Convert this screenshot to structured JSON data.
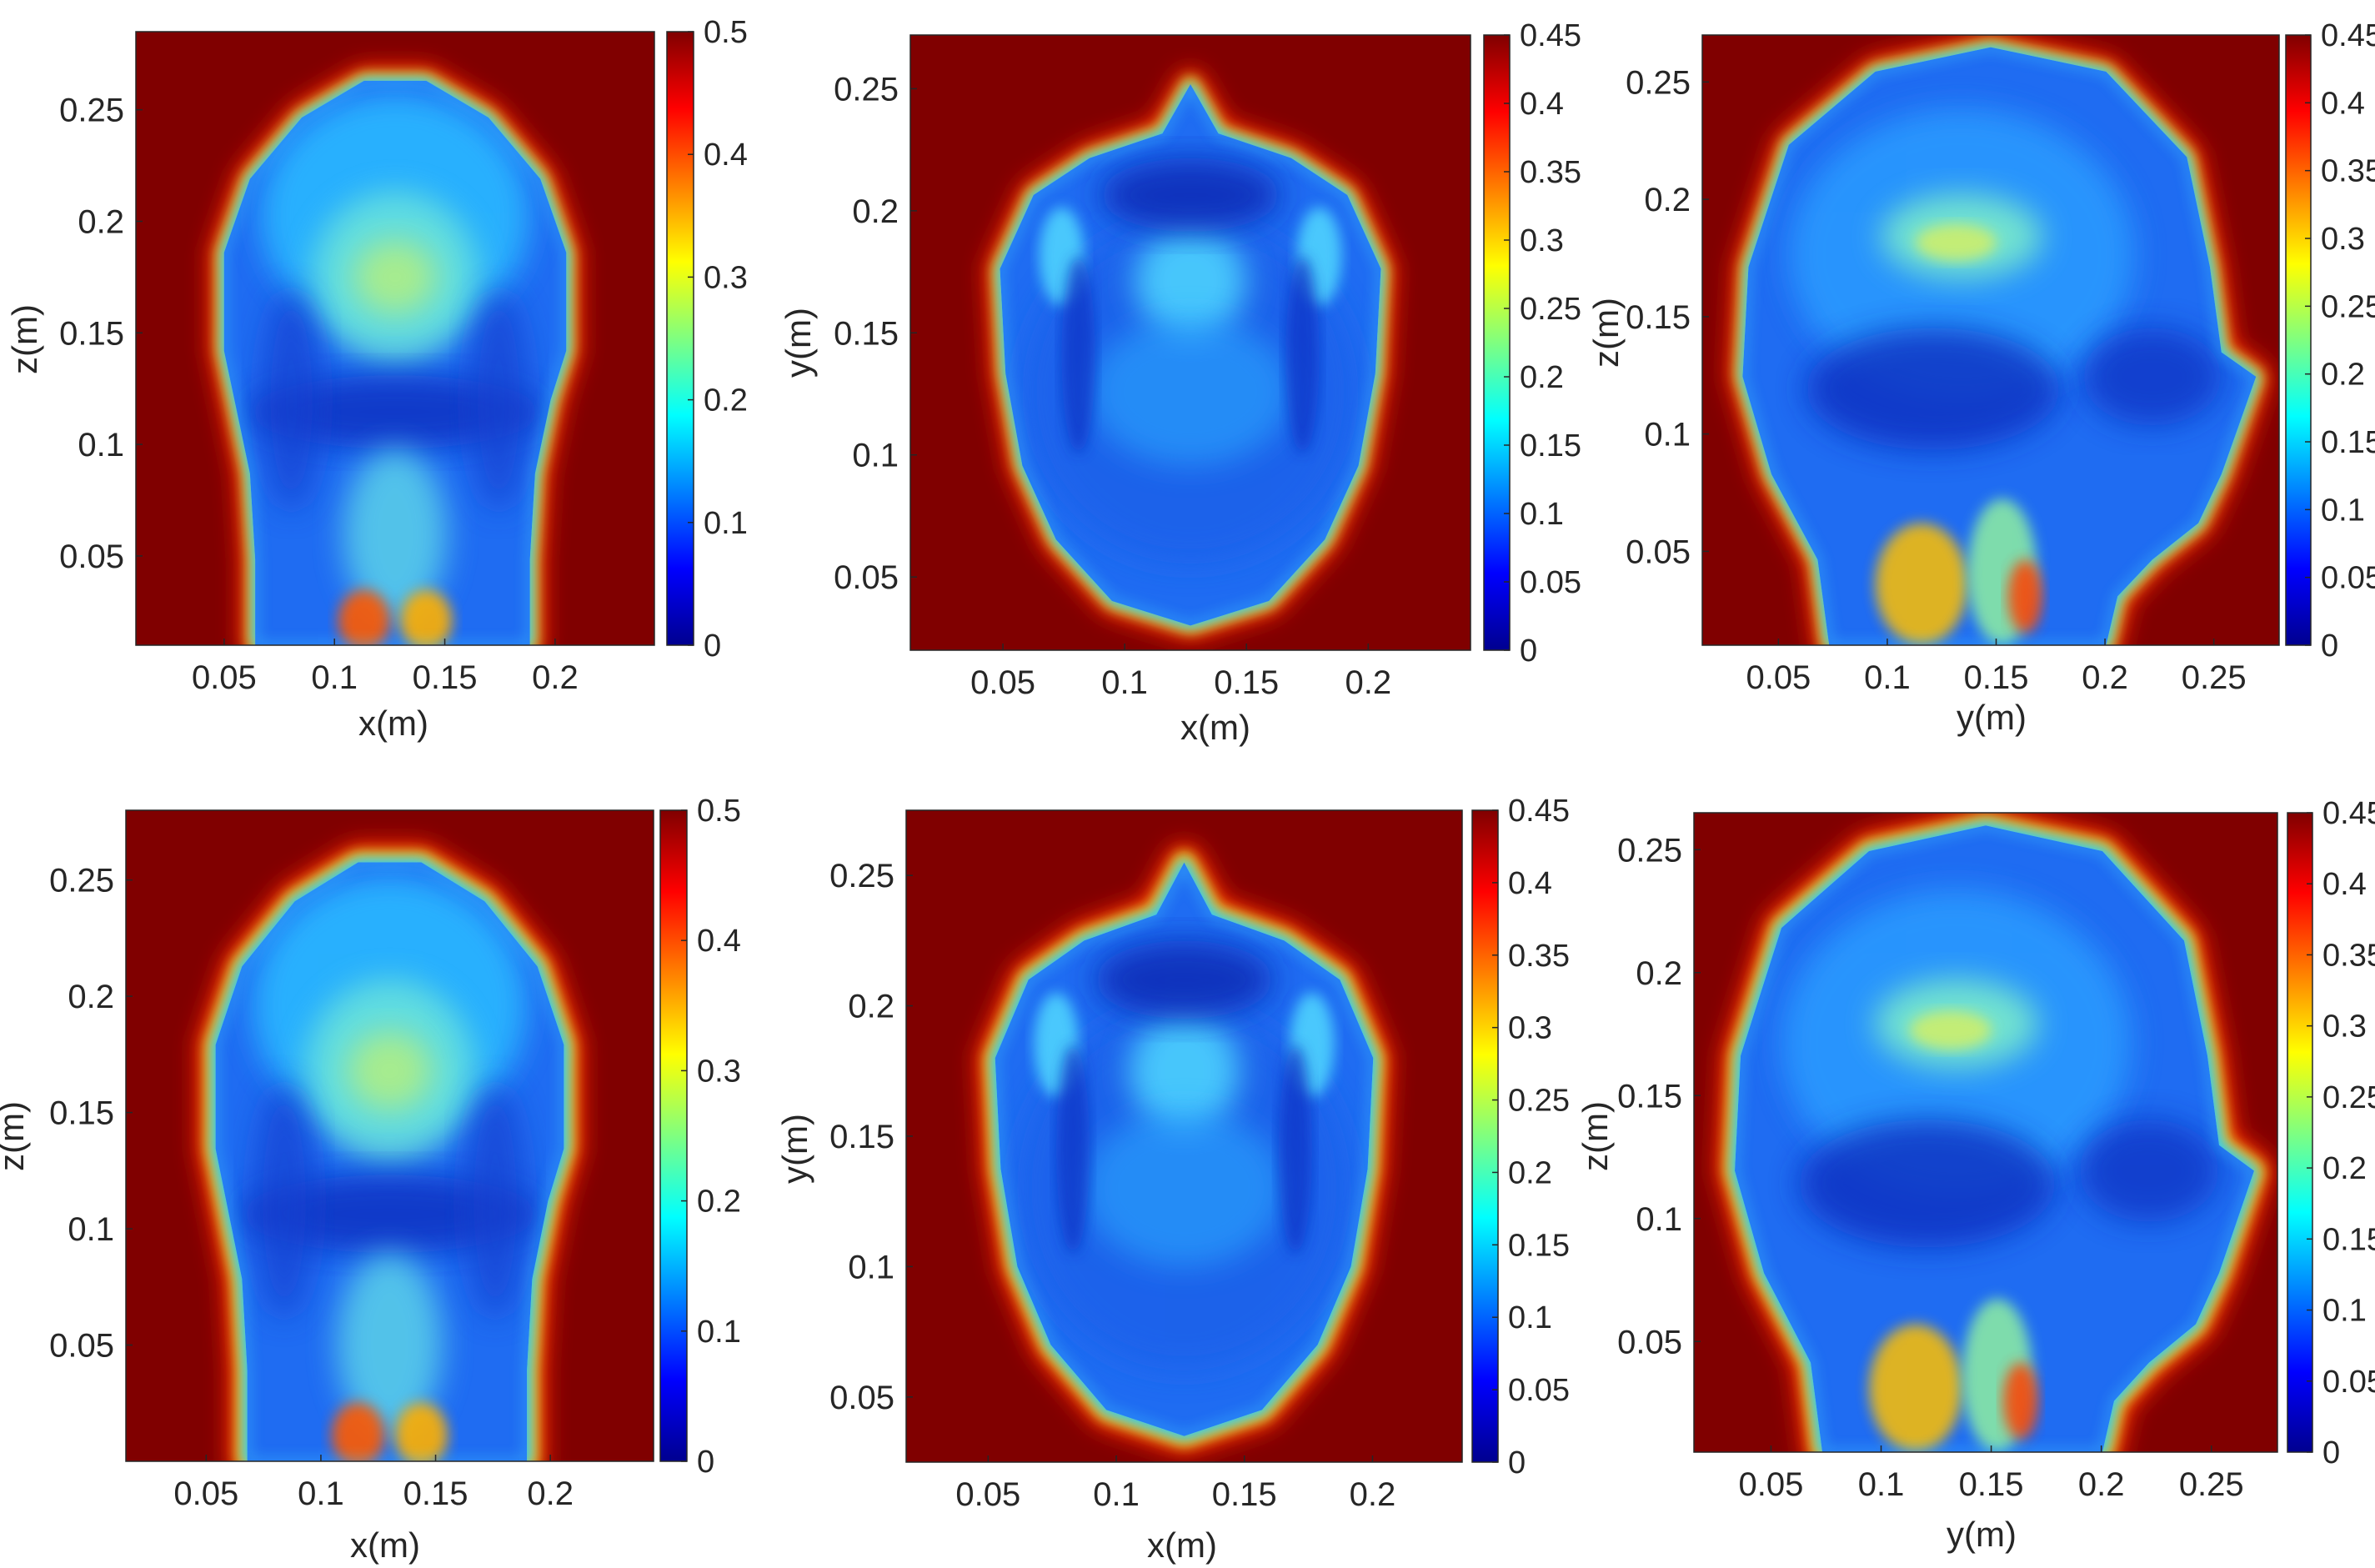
{
  "chart_data": [
    {
      "type": "heatmap",
      "view": "coronal",
      "xlabel": "x(m)",
      "ylabel": "z(m)",
      "xlim": [
        0.01,
        0.245
      ],
      "ylim": [
        0.01,
        0.285
      ],
      "xticks": [
        "0.05",
        "0.1",
        "0.15",
        "0.2"
      ],
      "xtick_values": [
        0.05,
        0.1,
        0.15,
        0.2
      ],
      "yticks": [
        "0.05",
        "0.1",
        "0.15",
        "0.2",
        "0.25"
      ],
      "ytick_values": [
        0.05,
        0.1,
        0.15,
        0.2,
        0.25
      ],
      "colorbar": {
        "min": 0,
        "max": 0.5,
        "ticks": [
          "0",
          "0.1",
          "0.2",
          "0.3",
          "0.4",
          "0.5"
        ],
        "tick_values": [
          0,
          0.1,
          0.2,
          0.3,
          0.4,
          0.5
        ]
      },
      "colormap": "jet",
      "background_value": 0.5
    },
    {
      "type": "heatmap",
      "view": "axial",
      "xlabel": "x(m)",
      "ylabel": "y(m)",
      "xlim": [
        0.012,
        0.242
      ],
      "ylim": [
        0.02,
        0.272
      ],
      "xticks": [
        "0.05",
        "0.1",
        "0.15",
        "0.2"
      ],
      "xtick_values": [
        0.05,
        0.1,
        0.15,
        0.2
      ],
      "yticks": [
        "0.05",
        "0.1",
        "0.15",
        "0.2",
        "0.25"
      ],
      "ytick_values": [
        0.05,
        0.1,
        0.15,
        0.2,
        0.25
      ],
      "colorbar": {
        "min": 0,
        "max": 0.45,
        "ticks": [
          "0",
          "0.05",
          "0.1",
          "0.15",
          "0.2",
          "0.25",
          "0.3",
          "0.35",
          "0.4",
          "0.45"
        ],
        "tick_values": [
          0,
          0.05,
          0.1,
          0.15,
          0.2,
          0.25,
          0.3,
          0.35,
          0.4,
          0.45
        ]
      },
      "colormap": "jet",
      "background_value": 0.45
    },
    {
      "type": "heatmap",
      "view": "sagittal",
      "xlabel": "y(m)",
      "ylabel": "z(m)",
      "xlim": [
        0.015,
        0.28
      ],
      "ylim": [
        0.01,
        0.27
      ],
      "xticks": [
        "0.05",
        "0.1",
        "0.15",
        "0.2",
        "0.25"
      ],
      "xtick_values": [
        0.05,
        0.1,
        0.15,
        0.2,
        0.25
      ],
      "yticks": [
        "0.05",
        "0.1",
        "0.15",
        "0.2",
        "0.25"
      ],
      "ytick_values": [
        0.05,
        0.1,
        0.15,
        0.2,
        0.25
      ],
      "colorbar": {
        "min": 0,
        "max": 0.45,
        "ticks": [
          "0",
          "0.05",
          "0.1",
          "0.15",
          "0.2",
          "0.25",
          "0.3",
          "0.35",
          "0.4",
          "0.45"
        ],
        "tick_values": [
          0,
          0.05,
          0.1,
          0.15,
          0.2,
          0.25,
          0.3,
          0.35,
          0.4,
          0.45
        ]
      },
      "colormap": "jet",
      "background_value": 0.45
    },
    {
      "type": "heatmap",
      "view": "coronal",
      "xlabel": "x(m)",
      "ylabel": "z(m)",
      "xlim": [
        0.015,
        0.245
      ],
      "ylim": [
        0.0,
        0.28
      ],
      "xticks": [
        "0.05",
        "0.1",
        "0.15",
        "0.2"
      ],
      "xtick_values": [
        0.05,
        0.1,
        0.15,
        0.2
      ],
      "yticks": [
        "0.05",
        "0.1",
        "0.15",
        "0.2",
        "0.25"
      ],
      "ytick_values": [
        0.05,
        0.1,
        0.15,
        0.2,
        0.25
      ],
      "colorbar": {
        "min": 0,
        "max": 0.5,
        "ticks": [
          "0",
          "0.1",
          "0.2",
          "0.3",
          "0.4",
          "0.5"
        ],
        "tick_values": [
          0,
          0.1,
          0.2,
          0.3,
          0.4,
          0.5
        ]
      },
      "colormap": "jet",
      "background_value": 0.5
    },
    {
      "type": "heatmap",
      "view": "axial",
      "xlabel": "x(m)",
      "ylabel": "y(m)",
      "xlim": [
        0.018,
        0.235
      ],
      "ylim": [
        0.025,
        0.275
      ],
      "xticks": [
        "0.05",
        "0.1",
        "0.15",
        "0.2"
      ],
      "xtick_values": [
        0.05,
        0.1,
        0.15,
        0.2
      ],
      "yticks": [
        "0.05",
        "0.1",
        "0.15",
        "0.2",
        "0.25"
      ],
      "ytick_values": [
        0.05,
        0.1,
        0.15,
        0.2,
        0.25
      ],
      "colorbar": {
        "min": 0,
        "max": 0.45,
        "ticks": [
          "0",
          "0.05",
          "0.1",
          "0.15",
          "0.2",
          "0.25",
          "0.3",
          "0.35",
          "0.4",
          "0.45"
        ],
        "tick_values": [
          0,
          0.05,
          0.1,
          0.15,
          0.2,
          0.25,
          0.3,
          0.35,
          0.4,
          0.45
        ]
      },
      "colormap": "jet",
      "background_value": 0.45
    },
    {
      "type": "heatmap",
      "view": "sagittal",
      "xlabel": "y(m)",
      "ylabel": "z(m)",
      "xlim": [
        0.015,
        0.28
      ],
      "ylim": [
        0.005,
        0.265
      ],
      "xticks": [
        "0.05",
        "0.1",
        "0.15",
        "0.2",
        "0.25"
      ],
      "xtick_values": [
        0.05,
        0.1,
        0.15,
        0.2,
        0.25
      ],
      "yticks": [
        "0.05",
        "0.1",
        "0.15",
        "0.2",
        "0.25"
      ],
      "ytick_values": [
        0.05,
        0.1,
        0.15,
        0.2,
        0.25
      ],
      "colorbar": {
        "min": 0,
        "max": 0.45,
        "ticks": [
          "0",
          "0.05",
          "0.1",
          "0.15",
          "0.2",
          "0.25",
          "0.3",
          "0.35",
          "0.4",
          "0.45"
        ],
        "tick_values": [
          0,
          0.05,
          0.1,
          0.15,
          0.2,
          0.25,
          0.3,
          0.35,
          0.4,
          0.45
        ]
      },
      "colormap": "jet",
      "background_value": 0.45
    }
  ],
  "colors": {
    "background": "#800000",
    "axis_text": "#262626"
  }
}
